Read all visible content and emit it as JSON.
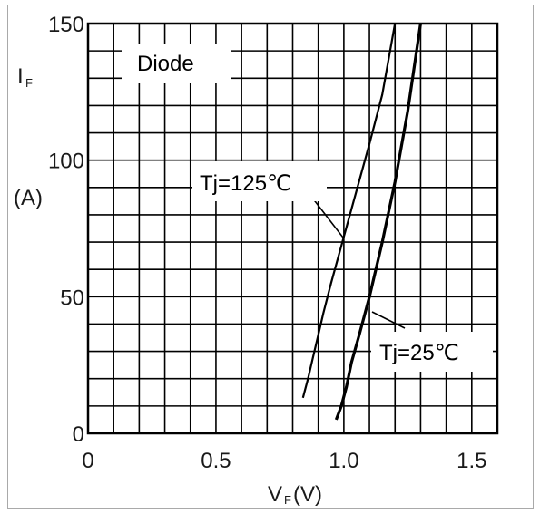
{
  "chart_data": {
    "type": "line",
    "title": "",
    "legend_box": "Diode",
    "xlabel": {
      "main": "V",
      "sub": "F",
      "unit": "(V)"
    },
    "ylabel": {
      "main": "I",
      "sub": "F",
      "unit": "(A)"
    },
    "xlim": [
      0,
      1.6
    ],
    "ylim": [
      0,
      150
    ],
    "xticks": [
      {
        "value": 0,
        "label": "0"
      },
      {
        "value": 0.5,
        "label": "0.5"
      },
      {
        "value": 1.0,
        "label": "1.0"
      },
      {
        "value": 1.5,
        "label": "1.5"
      }
    ],
    "yticks": [
      {
        "value": 0,
        "label": "0"
      },
      {
        "value": 50,
        "label": "50"
      },
      {
        "value": 100,
        "label": "100"
      },
      {
        "value": 150,
        "label": "150"
      }
    ],
    "grid": true,
    "series": [
      {
        "name": "Tj=125℃",
        "x": [
          0.84,
          0.86,
          0.88,
          0.9,
          0.92,
          0.95,
          1.0,
          1.05,
          1.1,
          1.15,
          1.2
        ],
        "y": [
          13,
          20,
          28,
          36,
          44,
          55,
          72,
          89,
          106,
          124,
          150
        ]
      },
      {
        "name": "Tj=25℃",
        "x": [
          0.97,
          0.99,
          1.01,
          1.03,
          1.06,
          1.1,
          1.15,
          1.2,
          1.25,
          1.3
        ],
        "y": [
          5,
          10,
          17,
          26,
          36,
          50,
          70,
          92,
          118,
          150
        ]
      }
    ],
    "annotations": [
      {
        "text": "Tj=125℃",
        "series": 0
      },
      {
        "text": "Tj=25℃",
        "series": 1
      }
    ]
  }
}
